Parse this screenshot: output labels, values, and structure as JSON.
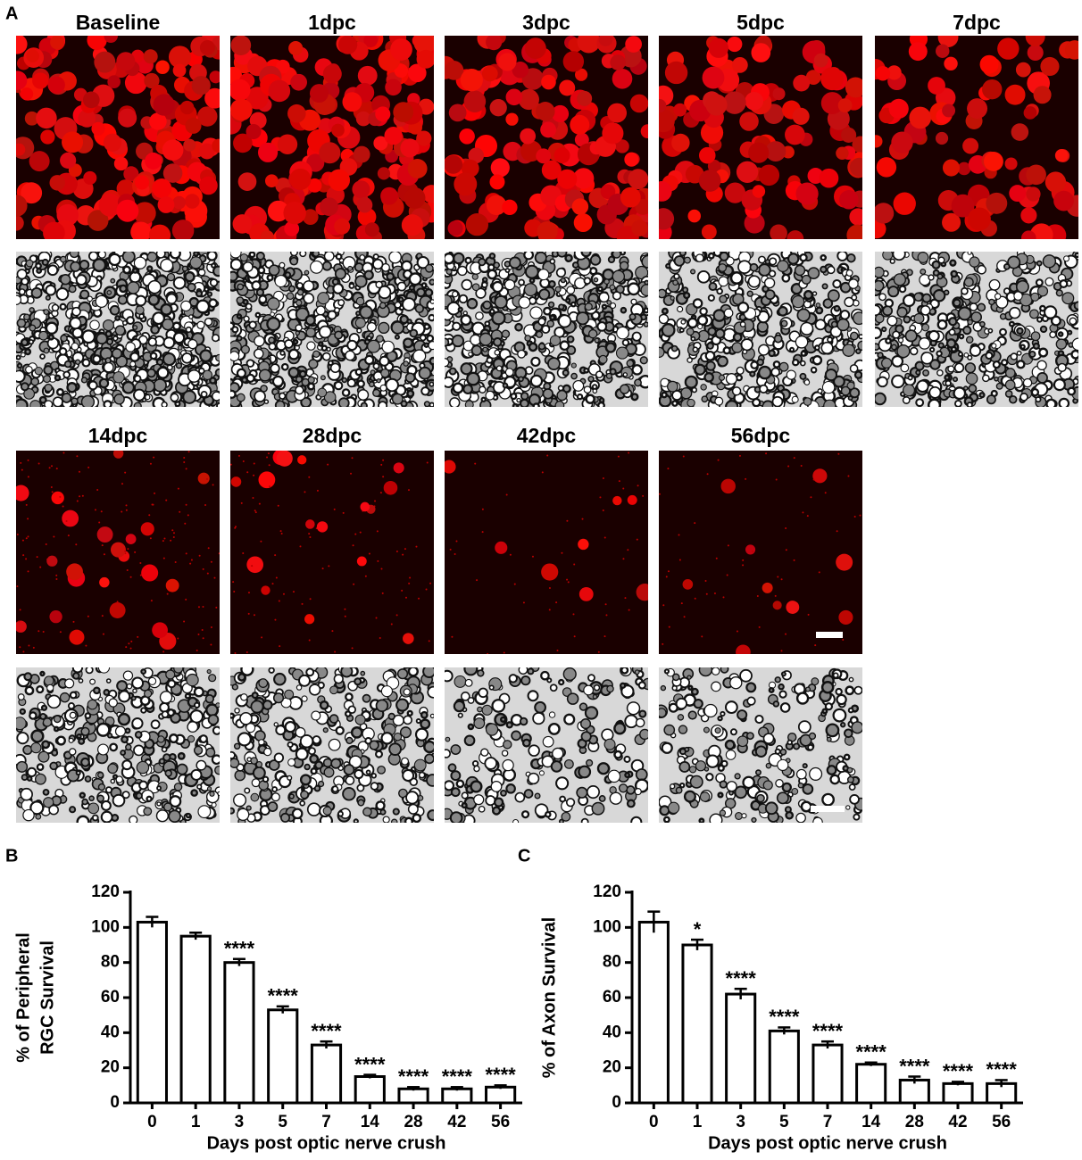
{
  "panel_labels": [
    "A",
    "B",
    "C"
  ],
  "images": {
    "titles": [
      "Baseline",
      "1dpc",
      "3dpc",
      "5dpc",
      "7dpc",
      "14dpc",
      "28dpc",
      "42dpc",
      "56dpc"
    ]
  },
  "chart_data": [
    {
      "type": "bar",
      "ylabel": [
        "% of Peripheral",
        "RGC Survival"
      ],
      "xlabel": "Days post optic nerve crush",
      "categories": [
        "0",
        "1",
        "3",
        "5",
        "7",
        "14",
        "28",
        "42",
        "56"
      ],
      "values": [
        103,
        95,
        80,
        53,
        33,
        15,
        8,
        8,
        9
      ],
      "errors": [
        3,
        2,
        2,
        2,
        2,
        1,
        1,
        1,
        1
      ],
      "annotations": [
        null,
        null,
        "****",
        "****",
        "****",
        "****",
        "****",
        "****",
        "****"
      ],
      "ylim": [
        0,
        120
      ],
      "yticks": [
        0,
        20,
        40,
        60,
        80,
        100,
        120
      ],
      "color": "#ffffff"
    },
    {
      "type": "bar",
      "ylabel": [
        "% of Axon Survival"
      ],
      "xlabel": "Days post optic nerve crush",
      "categories": [
        "0",
        "1",
        "3",
        "5",
        "7",
        "14",
        "28",
        "42",
        "56"
      ],
      "values": [
        103,
        90,
        62,
        41,
        33,
        22,
        13,
        11,
        11
      ],
      "errors": [
        6,
        3,
        3,
        2,
        2,
        1,
        2,
        1,
        2
      ],
      "annotations": [
        null,
        "*",
        "****",
        "****",
        "****",
        "****",
        "****",
        "****",
        "****"
      ],
      "ylim": [
        0,
        120
      ],
      "yticks": [
        0,
        20,
        40,
        60,
        80,
        100,
        120
      ],
      "color": "#ffffff"
    }
  ]
}
